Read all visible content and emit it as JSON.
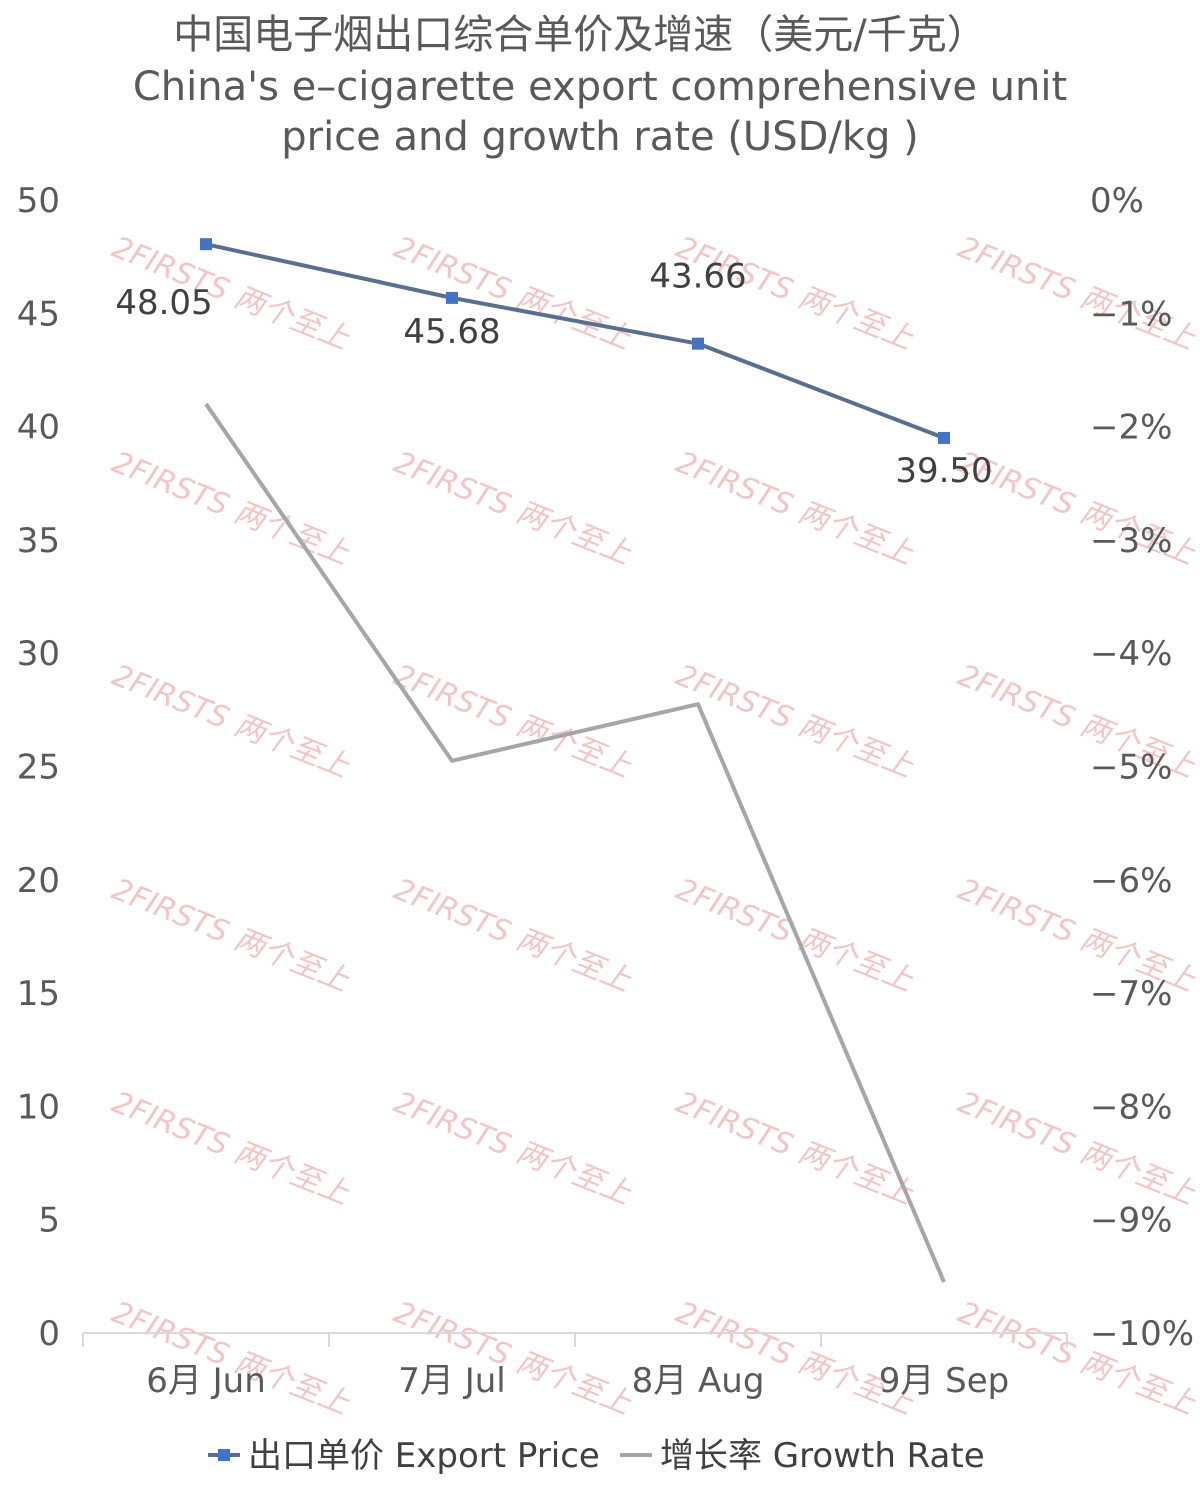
{
  "chart_data": {
    "type": "line",
    "title": "中国电子烟出口综合单价及增速（美元/千克）",
    "subtitle_lines": [
      "China's e–cigarette export comprehensive unit",
      "price and growth rate (USD/kg )"
    ],
    "categories": [
      "6月 Jun",
      "7月 Jul",
      "8月 Aug",
      "9月 Sep"
    ],
    "y_left": {
      "ticks": [
        "50",
        "45",
        "40",
        "35",
        "30",
        "25",
        "20",
        "15",
        "10",
        "5",
        "0"
      ],
      "ylim": [
        0,
        50
      ]
    },
    "y_right": {
      "ticks": [
        "0%",
        "−1%",
        "−2%",
        "−3%",
        "−4%",
        "−5%",
        "−6%",
        "−7%",
        "−8%",
        "−9%",
        "−10%"
      ],
      "ylim": [
        -10,
        0
      ]
    },
    "series": [
      {
        "name": "出口单价 Export Price",
        "axis": "left",
        "values": [
          48.05,
          45.68,
          43.66,
          39.5
        ],
        "data_labels": [
          "48.05",
          "45.68",
          "43.66",
          "39.50"
        ],
        "color": "#5a6f90",
        "marker_color": "#4472c4"
      },
      {
        "name": "增长率 Growth Rate",
        "axis": "right",
        "values": [
          -1.8,
          -4.95,
          -4.45,
          -9.55
        ],
        "color": "#a6a6a6"
      }
    ],
    "legend_position": "bottom",
    "grid": false,
    "watermark": "2FIRSTS 两个至上"
  }
}
